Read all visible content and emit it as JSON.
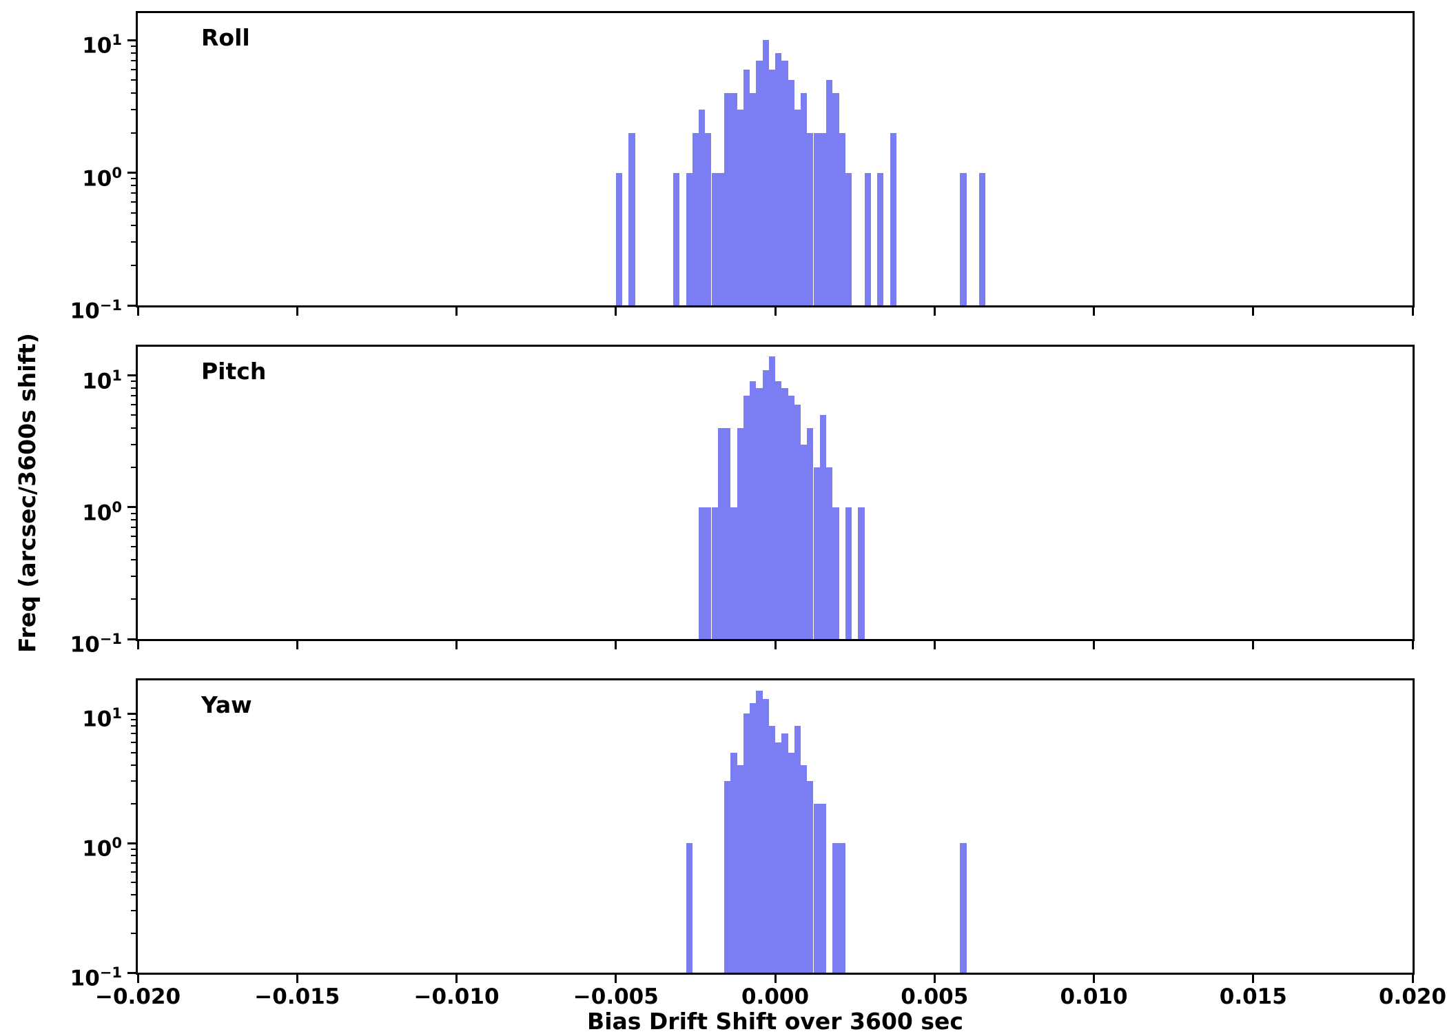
{
  "figure": {
    "xlabel": "Bias Drift Shift over 3600 sec",
    "ylabel": "Freq (arcsec/3600s shift)",
    "bar_color": "#7b7ef2",
    "axis_color": "#000000",
    "xlim": [
      -0.02,
      0.02
    ],
    "x_ticks": [
      -0.02,
      -0.015,
      -0.01,
      -0.005,
      0.0,
      0.005,
      0.01,
      0.015,
      0.02
    ],
    "x_tick_labels": [
      "−0.020",
      "−0.015",
      "−0.010",
      "−0.005",
      "0.000",
      "0.005",
      "0.010",
      "0.015",
      "0.020"
    ],
    "y_major_tick_exponents": [
      1,
      0,
      -1
    ]
  },
  "chart_data": [
    {
      "type": "bar",
      "subtype": "histogram",
      "title": "Roll",
      "yscale": "log",
      "ylim": [
        0.1,
        16
      ],
      "bin_width": 0.0002,
      "bins": [
        [
          -0.0049,
          1
        ],
        [
          -0.0045,
          2
        ],
        [
          -0.0031,
          1
        ],
        [
          -0.0027,
          1
        ],
        [
          -0.0025,
          2
        ],
        [
          -0.0023,
          3
        ],
        [
          -0.0021,
          2
        ],
        [
          -0.0019,
          1
        ],
        [
          -0.0017,
          1
        ],
        [
          -0.0015,
          4
        ],
        [
          -0.0013,
          4
        ],
        [
          -0.0011,
          3
        ],
        [
          -0.0009,
          6
        ],
        [
          -0.0007,
          4
        ],
        [
          -0.0005,
          7
        ],
        [
          -0.0003,
          10
        ],
        [
          -0.0001,
          6
        ],
        [
          0.0001,
          8
        ],
        [
          0.0003,
          7
        ],
        [
          0.0005,
          5
        ],
        [
          0.0007,
          3
        ],
        [
          0.0009,
          4
        ],
        [
          0.0011,
          2
        ],
        [
          0.0013,
          2
        ],
        [
          0.0015,
          2
        ],
        [
          0.0017,
          5
        ],
        [
          0.0019,
          4
        ],
        [
          0.0021,
          2
        ],
        [
          0.0023,
          1
        ],
        [
          0.0029,
          1
        ],
        [
          0.0033,
          1
        ],
        [
          0.0037,
          2
        ],
        [
          0.0059,
          1
        ],
        [
          0.0065,
          1
        ]
      ]
    },
    {
      "type": "bar",
      "subtype": "histogram",
      "title": "Pitch",
      "yscale": "log",
      "ylim": [
        0.1,
        16.5
      ],
      "bin_width": 0.0002,
      "bins": [
        [
          -0.0023,
          1
        ],
        [
          -0.0021,
          1
        ],
        [
          -0.0019,
          1
        ],
        [
          -0.0017,
          4
        ],
        [
          -0.0015,
          4
        ],
        [
          -0.0013,
          1
        ],
        [
          -0.0011,
          4
        ],
        [
          -0.0009,
          7
        ],
        [
          -0.0007,
          9
        ],
        [
          -0.0005,
          8
        ],
        [
          -0.0003,
          11
        ],
        [
          -0.0001,
          14
        ],
        [
          0.0001,
          9
        ],
        [
          0.0003,
          8
        ],
        [
          0.0005,
          7
        ],
        [
          0.0007,
          6
        ],
        [
          0.0009,
          3
        ],
        [
          0.0011,
          4
        ],
        [
          0.0013,
          2
        ],
        [
          0.0015,
          5
        ],
        [
          0.0017,
          2
        ],
        [
          0.0019,
          1
        ],
        [
          0.0023,
          1
        ],
        [
          0.0027,
          1
        ]
      ]
    },
    {
      "type": "bar",
      "subtype": "histogram",
      "title": "Yaw",
      "yscale": "log",
      "ylim": [
        0.1,
        18
      ],
      "bin_width": 0.0002,
      "bins": [
        [
          -0.0027,
          1
        ],
        [
          -0.0015,
          3
        ],
        [
          -0.0013,
          5
        ],
        [
          -0.0011,
          4
        ],
        [
          -0.0009,
          10
        ],
        [
          -0.0007,
          12
        ],
        [
          -0.0005,
          15
        ],
        [
          -0.0003,
          13
        ],
        [
          -0.0001,
          8
        ],
        [
          0.0001,
          6
        ],
        [
          0.0003,
          7
        ],
        [
          0.0005,
          5
        ],
        [
          0.0007,
          8
        ],
        [
          0.0009,
          4
        ],
        [
          0.0011,
          3
        ],
        [
          0.0013,
          2
        ],
        [
          0.0015,
          2
        ],
        [
          0.0019,
          1
        ],
        [
          0.0021,
          1
        ],
        [
          0.0059,
          1
        ]
      ]
    }
  ]
}
